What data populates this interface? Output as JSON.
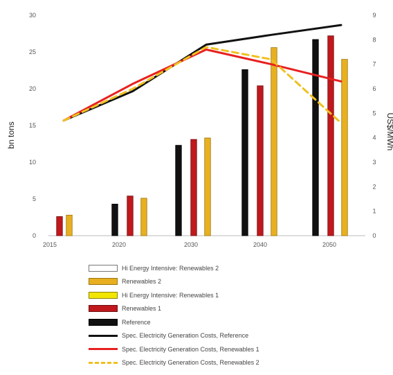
{
  "chart_data": {
    "type": "bar",
    "categories": [
      "2015",
      "2020",
      "2030",
      "2040",
      "2050"
    ],
    "ylabel": "bn tons",
    "y2label": "US$/MWh",
    "ylim": [
      0,
      30
    ],
    "yticks": [
      "0",
      "5",
      "10",
      "15",
      "20",
      "25",
      "30"
    ],
    "y2lim": [
      0,
      9
    ],
    "y2ticks": [
      "0",
      "1",
      "2",
      "3",
      "4",
      "5",
      "6",
      "7",
      "8",
      "9"
    ],
    "grid": false,
    "legend_position": "bottom",
    "bar_series": [
      {
        "name": "Hi Energy Intensive: Renewables 2",
        "color": "#ffffff",
        "edge": "#777777",
        "values": [
          null,
          null,
          null,
          null,
          null
        ]
      },
      {
        "name": "Renewables 2",
        "color": "#e8b020",
        "edge": "#9a7410",
        "values": [
          2.8,
          5.1,
          13.3,
          25.6,
          24.0
        ]
      },
      {
        "name": "Hi Energy Intensive: Renewables 1",
        "color": "#f2e600",
        "edge": "#8a8000",
        "values": [
          null,
          null,
          null,
          null,
          null
        ]
      },
      {
        "name": "Renewables 1",
        "color": "#c0181c",
        "edge": "#6e0e10",
        "values": [
          2.6,
          5.4,
          13.1,
          20.4,
          27.2
        ]
      },
      {
        "name": "Reference",
        "color": "#111111",
        "edge": "#000000",
        "values": [
          null,
          4.3,
          12.3,
          22.6,
          26.7
        ]
      }
    ],
    "line_series": [
      {
        "name": "Spec. Electricity Generation Costs, Reference",
        "color": "#111111",
        "dash": "none",
        "values": [
          4.7,
          5.9,
          7.8,
          8.2,
          8.6
        ]
      },
      {
        "name": "Spec. Electricity Generation Costs, Renewables 1",
        "color": "#e82020",
        "dash": "none",
        "values": [
          4.7,
          6.2,
          7.6,
          7.0,
          6.3
        ]
      },
      {
        "name": "Spec. Electricity Generation Costs, Renewables 2",
        "color": "#f0c020",
        "dash": "dashed",
        "values": [
          4.7,
          6.0,
          7.7,
          7.2,
          4.6
        ]
      }
    ]
  },
  "legend": [
    {
      "kind": "box",
      "label": "Hi Energy Intensive: Renewables 2",
      "fill": "#ffffff",
      "border": "#777777"
    },
    {
      "kind": "box",
      "label": "Renewables 2",
      "fill": "#e8b020",
      "border": "#9a7410"
    },
    {
      "kind": "box",
      "label": "Hi Energy Intensive: Renewables 1",
      "fill": "#f2e600",
      "border": "#8a8000"
    },
    {
      "kind": "box",
      "label": "Renewables 1",
      "fill": "#c0181c",
      "border": "#6e0e10"
    },
    {
      "kind": "box",
      "label": "Reference",
      "fill": "#111111",
      "border": "#000000"
    },
    {
      "kind": "line",
      "label": "Spec. Electricity Generation Costs, Reference",
      "color": "#111111",
      "dash": "solid"
    },
    {
      "kind": "line",
      "label": "Spec. Electricity Generation Costs, Renewables 1",
      "color": "#e82020",
      "dash": "solid"
    },
    {
      "kind": "line",
      "label": "Spec. Electricity Generation Costs, Renewables 2",
      "color": "#f0c020",
      "dash": "dashed"
    }
  ]
}
